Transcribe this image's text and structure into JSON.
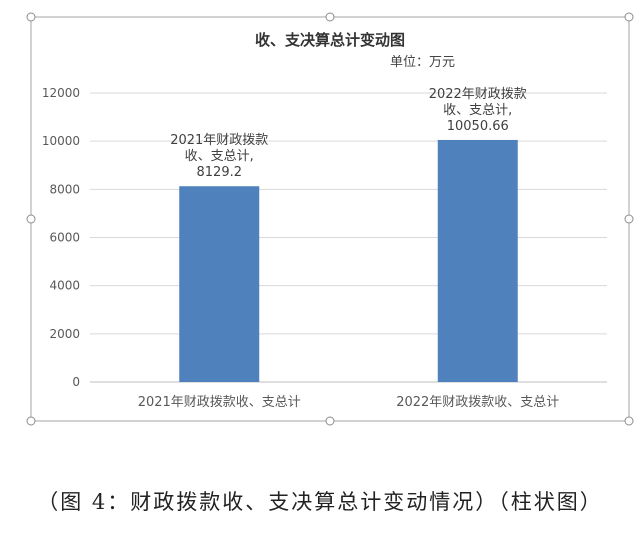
{
  "chart_data": {
    "type": "bar",
    "title": "收、支决算总计变动图",
    "unit_note": "单位：万元",
    "categories": [
      "2021年财政拨款收、支总计",
      "2022年财政拨款收、支总计"
    ],
    "values": [
      8129.2,
      10050.66
    ],
    "data_labels": [
      [
        "2021年财政拨款",
        "收、支总计,",
        "8129.2"
      ],
      [
        "2022年财政拨款",
        "收、支总计,",
        "10050.66"
      ]
    ],
    "ylim": [
      0,
      12000
    ],
    "yticks": [
      0,
      2000,
      4000,
      6000,
      8000,
      10000,
      12000
    ],
    "grid": true,
    "legend": "none",
    "bar_color": "#4f81bd"
  },
  "caption": "（图 4：财政拨款收、支决算总计变动情况）（柱状图）"
}
